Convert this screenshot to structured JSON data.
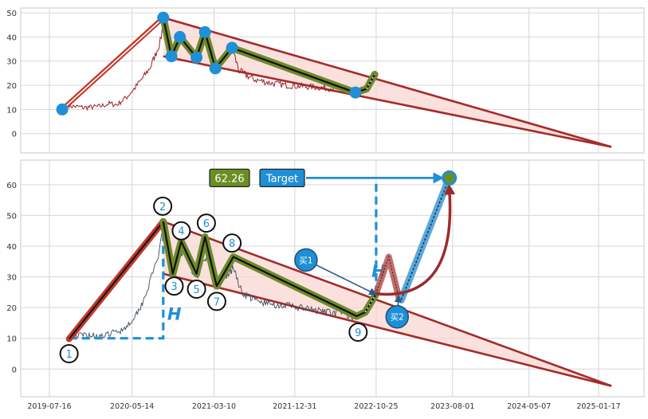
{
  "colors": {
    "background": "#ffffff",
    "grid": "#d6d6d6",
    "frame": "#c9c9c9",
    "price_top": "#9b2222",
    "price_bottom": "#3b4a5e",
    "channel_line": "#a52a2a",
    "channel_fill": "#f8d7d2",
    "wave_outer": "#6f8a2a",
    "wave_inner": "#111111",
    "impulse": "#c0392b",
    "marker": "#1f8fd6",
    "blue_dash": "#1f8fd6",
    "target_fill": "#1f8fd6",
    "value_box_fill": "#6b8e23"
  },
  "chart_data": [
    {
      "type": "line",
      "panel": "top",
      "ylim": [
        -8,
        52
      ],
      "yticks": [
        0,
        10,
        20,
        30,
        40,
        50
      ],
      "grid": true,
      "price_series": [
        [
          "2019-09-26",
          11.5
        ],
        [
          "2019-11-20",
          10.8
        ],
        [
          "2020-01-15",
          11.2
        ],
        [
          "2020-02-20",
          12.4
        ],
        [
          "2020-03-20",
          12.0
        ],
        [
          "2020-04-25",
          15.2
        ],
        [
          "2020-05-25",
          19.0
        ],
        [
          "2020-06-25",
          23.5
        ],
        [
          "2020-07-20",
          27.5
        ],
        [
          "2020-08-10",
          33.5
        ],
        [
          "2020-08-25",
          38.0
        ],
        [
          "2020-09-08",
          47.5
        ],
        [
          "2020-09-20",
          39.0
        ],
        [
          "2020-10-05",
          32.5
        ],
        [
          "2020-10-25",
          36.0
        ],
        [
          "2020-11-20",
          40.0
        ],
        [
          "2020-12-15",
          34.0
        ],
        [
          "2021-01-08",
          31.5
        ],
        [
          "2021-01-25",
          36.0
        ],
        [
          "2021-02-10",
          41.5
        ],
        [
          "2021-03-05",
          34.0
        ],
        [
          "2021-03-15",
          27.5
        ],
        [
          "2021-04-20",
          31.0
        ],
        [
          "2021-05-15",
          35.5
        ],
        [
          "2021-06-10",
          26.0
        ],
        [
          "2021-08-01",
          22.5
        ],
        [
          "2021-10-01",
          21.0
        ],
        [
          "2021-12-01",
          20.0
        ],
        [
          "2022-02-01",
          19.5
        ],
        [
          "2022-04-15",
          19.0
        ],
        [
          "2022-06-15",
          18.5
        ],
        [
          "2022-08-10",
          17.5
        ]
      ],
      "pivot_markers": [
        [
          "2019-09-01",
          10
        ],
        [
          "2020-09-05",
          48
        ],
        [
          "2020-10-05",
          32
        ],
        [
          "2020-11-05",
          40
        ],
        [
          "2021-01-05",
          31.5
        ],
        [
          "2021-02-05",
          42
        ],
        [
          "2021-03-15",
          27
        ],
        [
          "2021-05-15",
          35.5
        ],
        [
          "2022-08-10",
          17
        ]
      ],
      "impulse_line": [
        [
          "2019-09-01",
          10
        ],
        [
          "2020-09-05",
          48
        ]
      ],
      "wave_path": [
        [
          "2020-09-05",
          48
        ],
        [
          "2020-10-05",
          32
        ],
        [
          "2020-11-05",
          40
        ],
        [
          "2021-01-05",
          31.5
        ],
        [
          "2021-02-05",
          42
        ],
        [
          "2021-03-15",
          27
        ],
        [
          "2021-05-15",
          35.5
        ],
        [
          "2022-08-10",
          17
        ],
        [
          "2022-09-20",
          18.5
        ],
        [
          "2022-10-20",
          24.5
        ]
      ],
      "channel_upper": [
        [
          "2020-09-05",
          48
        ],
        [
          "2025-03-05",
          -5.5
        ]
      ],
      "channel_lower": [
        [
          "2020-09-05",
          32
        ],
        [
          "2025-03-05",
          -5.5
        ]
      ]
    },
    {
      "type": "line",
      "panel": "bottom",
      "ylim": [
        -9,
        68
      ],
      "yticks": [
        0,
        10,
        20,
        30,
        40,
        50,
        60
      ],
      "xticks": [
        "2019-07-16",
        "2020-05-14",
        "2021-03-10",
        "2021-12-31",
        "2022-10-25",
        "2023-08-01",
        "2024-05-07",
        "2025-01-17"
      ],
      "grid": true,
      "price_series": [
        [
          "2019-10-10",
          10.8
        ],
        [
          "2019-12-01",
          11.2
        ],
        [
          "2020-02-01",
          10.6
        ],
        [
          "2020-03-01",
          11.8
        ],
        [
          "2020-04-01",
          12.5
        ],
        [
          "2020-05-01",
          14.5
        ],
        [
          "2020-06-10",
          19.5
        ],
        [
          "2020-07-05",
          25.0
        ],
        [
          "2020-07-25",
          30.0
        ],
        [
          "2020-08-10",
          35.0
        ],
        [
          "2020-08-25",
          39.5
        ],
        [
          "2020-09-05",
          46.0
        ],
        [
          "2020-09-20",
          38.0
        ],
        [
          "2020-10-05",
          32.0
        ],
        [
          "2020-10-25",
          35.0
        ],
        [
          "2020-11-20",
          38.5
        ],
        [
          "2020-12-15",
          33.0
        ],
        [
          "2021-01-08",
          30.5
        ],
        [
          "2021-02-01",
          35.0
        ],
        [
          "2021-02-20",
          39.0
        ],
        [
          "2021-03-10",
          31.0
        ],
        [
          "2021-03-25",
          27.0
        ],
        [
          "2021-04-25",
          30.0
        ],
        [
          "2021-05-20",
          33.0
        ],
        [
          "2021-06-20",
          25.0
        ],
        [
          "2021-08-15",
          22.0
        ],
        [
          "2021-10-15",
          21.0
        ],
        [
          "2021-12-15",
          20.5
        ],
        [
          "2022-02-15",
          19.5
        ],
        [
          "2022-04-20",
          18.5
        ],
        [
          "2022-06-20",
          18.0
        ],
        [
          "2022-08-15",
          17.0
        ]
      ],
      "wave_labels": [
        {
          "label": "1",
          "date": "2019-09-26",
          "y": 5
        },
        {
          "label": "2",
          "date": "2020-09-03",
          "y": 53
        },
        {
          "label": "3",
          "date": "2020-10-15",
          "y": 27
        },
        {
          "label": "4",
          "date": "2020-11-10",
          "y": 45
        },
        {
          "label": "5",
          "date": "2021-01-05",
          "y": 26
        },
        {
          "label": "6",
          "date": "2021-02-10",
          "y": 47.5
        },
        {
          "label": "7",
          "date": "2021-03-20",
          "y": 22
        },
        {
          "label": "8",
          "date": "2021-05-15",
          "y": 41
        },
        {
          "label": "9",
          "date": "2022-08-20",
          "y": 12
        }
      ],
      "impulse_line": [
        [
          "2019-09-26",
          9.8
        ],
        [
          "2020-09-05",
          48
        ]
      ],
      "wave_path": [
        [
          "2020-09-05",
          48
        ],
        [
          "2020-10-10",
          31
        ],
        [
          "2020-11-10",
          41.5
        ],
        [
          "2021-01-05",
          31
        ],
        [
          "2021-02-05",
          43
        ],
        [
          "2021-03-20",
          27
        ],
        [
          "2021-05-20",
          36.5
        ],
        [
          "2022-08-15",
          17.2
        ],
        [
          "2022-09-15",
          18.5
        ],
        [
          "2022-10-25",
          24.5
        ]
      ],
      "channel_upper": [
        [
          "2020-09-05",
          48
        ],
        [
          "2025-03-05",
          -5.5
        ]
      ],
      "channel_lower": [
        [
          "2020-09-05",
          31
        ],
        [
          "2025-03-05",
          -5.5
        ]
      ],
      "h_markers": [
        {
          "label": "H",
          "base": [
            "2019-09-26",
            10
          ],
          "corner": [
            "2020-09-05",
            10
          ],
          "top": [
            "2020-09-05",
            48
          ],
          "label_at": [
            "2020-09-20",
            16
          ]
        },
        {
          "label": "H",
          "base": [
            "2022-10-25",
            24.5
          ],
          "top": [
            "2022-10-25",
            60.5
          ],
          "label_at": [
            "2022-10-08",
            30
          ]
        }
      ],
      "red_retest": [
        [
          "2022-10-25",
          24.5
        ],
        [
          "2022-12-10",
          36.5
        ],
        [
          "2023-01-20",
          22
        ]
      ],
      "target_line": [
        [
          "2023-01-25",
          22.5
        ],
        [
          "2023-07-20",
          62.2
        ]
      ],
      "target_marker": [
        "2023-07-20",
        62.2
      ],
      "buy_markers": [
        {
          "label": "买1",
          "date": "2022-02-10",
          "y": 35.5,
          "arrow_to": [
            "2022-10-20",
            24.5
          ]
        },
        {
          "label": "买2",
          "date": "2023-01-10",
          "y": 17,
          "arrow_to": [
            "2023-01-15",
            23.5
          ]
        }
      ],
      "value_box": "62.26",
      "target_label": "Target"
    }
  ]
}
